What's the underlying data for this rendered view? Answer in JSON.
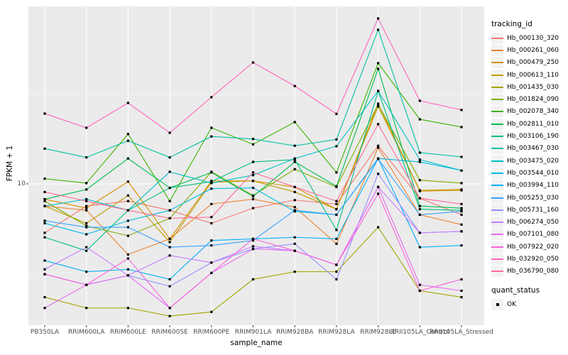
{
  "figure": {
    "panel_bg": "#EBEBEB",
    "grid_major_color": "#FFFFFF",
    "grid_minor_color": "#F7F7F7",
    "tick_mark_color": "#333333",
    "axis_text_color": "#4D4D4D",
    "point_color": "#000000"
  },
  "chart_data": {
    "type": "line",
    "title": "",
    "xlabel": "sample_name",
    "ylabel": "FPKM + 1",
    "y_scale": "log10",
    "ylim": [
      1.6,
      99
    ],
    "grid": true,
    "point_marker": "square",
    "y_ticks": [
      {
        "value": 10,
        "label": "10"
      }
    ],
    "categories": [
      "PB350LA",
      "RRIM600LA",
      "RRIM600LE",
      "RRIM600SE",
      "RRIM600PE",
      "RRIM901LA",
      "RRIM928BA",
      "RRIM928LA",
      "RRIM928LE",
      "RRII105LA_Control",
      "RRII105LA_Stressed"
    ],
    "legend": {
      "title": "tracking_id",
      "position": "right"
    },
    "legend2": {
      "title": "quant_status",
      "items": [
        {
          "label": "OK",
          "marker": "square",
          "color": "#000000"
        }
      ]
    },
    "series": [
      {
        "name": "Hb_000130_320",
        "color": "#F8766D",
        "values": [
          5.3,
          7.5,
          8.0,
          7.1,
          6.0,
          7.3,
          8.1,
          7.7,
          16.4,
          8.3,
          6.7
        ]
      },
      {
        "name": "Hb_000261_060",
        "color": "#EA8331",
        "values": [
          7.5,
          7.1,
          4.0,
          4.9,
          7.7,
          8.2,
          7.4,
          4.6,
          16.0,
          6.7,
          5.9
        ]
      },
      {
        "name": "Hb_000479_250",
        "color": "#D89000",
        "values": [
          8.2,
          7.3,
          10.3,
          4.9,
          10.4,
          10.4,
          9.6,
          7.2,
          28.3,
          9.1,
          9.2
        ]
      },
      {
        "name": "Hb_000613_110",
        "color": "#C09B00",
        "values": [
          7.5,
          6.0,
          8.6,
          4.7,
          10.2,
          10.4,
          9.0,
          7.2,
          27.3,
          9.2,
          9.3
        ]
      },
      {
        "name": "Hb_001435_030",
        "color": "#A3A500",
        "values": [
          2.3,
          2.0,
          2.0,
          1.8,
          1.9,
          2.9,
          3.2,
          3.2,
          5.7,
          2.5,
          2.3
        ]
      },
      {
        "name": "Hb_001824_090",
        "color": "#7CAE00",
        "values": [
          8.0,
          5.8,
          5.1,
          6.4,
          11.7,
          8.6,
          12.1,
          9.6,
          28.0,
          10.5,
          10.1
        ]
      },
      {
        "name": "Hb_002078_340",
        "color": "#39B600",
        "values": [
          10.7,
          10.1,
          19.1,
          8.0,
          20.7,
          16.7,
          22.3,
          11.6,
          47.9,
          23.1,
          20.9
        ]
      },
      {
        "name": "Hb_002811_010",
        "color": "#00BB4E",
        "values": [
          8.2,
          9.3,
          13.9,
          9.5,
          11.6,
          8.5,
          13.3,
          9.7,
          44.5,
          7.5,
          7.3
        ]
      },
      {
        "name": "Hb_003106_190",
        "color": "#00BF7D",
        "values": [
          5.0,
          4.2,
          7.1,
          9.5,
          10.3,
          13.3,
          13.7,
          5.5,
          33.4,
          7.2,
          7.1
        ]
      },
      {
        "name": "Hb_003467_030",
        "color": "#00C1A3",
        "values": [
          15.8,
          14.1,
          17.5,
          14.1,
          18.5,
          17.9,
          16.4,
          17.8,
          73.8,
          15.0,
          14.2
        ]
      },
      {
        "name": "Hb_003475_020",
        "color": "#00BFC4",
        "values": [
          7.5,
          8.2,
          7.1,
          11.7,
          10.1,
          11.2,
          13.9,
          16.3,
          33.4,
          13.7,
          11.9
        ]
      },
      {
        "name": "Hb_003544_010",
        "color": "#00BAE0",
        "values": [
          6.0,
          5.2,
          6.2,
          7.1,
          9.4,
          9.5,
          7.0,
          6.7,
          13.9,
          13.3,
          11.9
        ]
      },
      {
        "name": "Hb_003994_110",
        "color": "#00B0F6",
        "values": [
          3.7,
          3.2,
          3.3,
          2.9,
          4.8,
          4.9,
          5.0,
          4.9,
          13.9,
          4.4,
          4.5
        ]
      },
      {
        "name": "Hb_005253_030",
        "color": "#35A2FF",
        "values": [
          6.2,
          5.7,
          5.7,
          4.4,
          4.5,
          4.8,
          7.1,
          6.7,
          13.8,
          6.7,
          7.0
        ]
      },
      {
        "name": "Hb_005731_160",
        "color": "#9590FF",
        "values": [
          3.1,
          2.7,
          3.05,
          2.65,
          3.6,
          4.3,
          4.6,
          2.9,
          11.4,
          5.3,
          5.4
        ]
      },
      {
        "name": "Hb_006274_050",
        "color": "#C77CFF",
        "values": [
          3.3,
          4.4,
          3.05,
          3.95,
          3.6,
          4.45,
          4.2,
          3.5,
          9.6,
          5.3,
          5.4
        ]
      },
      {
        "name": "Hb_007101_080",
        "color": "#E76BF3",
        "values": [
          2.0,
          2.7,
          3.05,
          2.0,
          3.15,
          4.3,
          4.2,
          3.5,
          9.6,
          2.7,
          2.5
        ]
      },
      {
        "name": "Hb_007922_020",
        "color": "#FA62DB",
        "values": [
          3.1,
          2.7,
          3.8,
          2.0,
          3.15,
          4.9,
          4.2,
          3.5,
          8.8,
          2.5,
          2.9
        ]
      },
      {
        "name": "Hb_032920_050",
        "color": "#FF62BC",
        "values": [
          24.9,
          20.7,
          28.6,
          19.4,
          30.8,
          48.3,
          35.6,
          24.8,
          85.5,
          29.4,
          26.1
        ]
      },
      {
        "name": "Hb_036790_080",
        "color": "#FF6A98",
        "values": [
          9.0,
          8.0,
          7.1,
          6.4,
          6.5,
          11.6,
          9.6,
          8.0,
          21.7,
          8.3,
          7.7
        ]
      }
    ]
  }
}
